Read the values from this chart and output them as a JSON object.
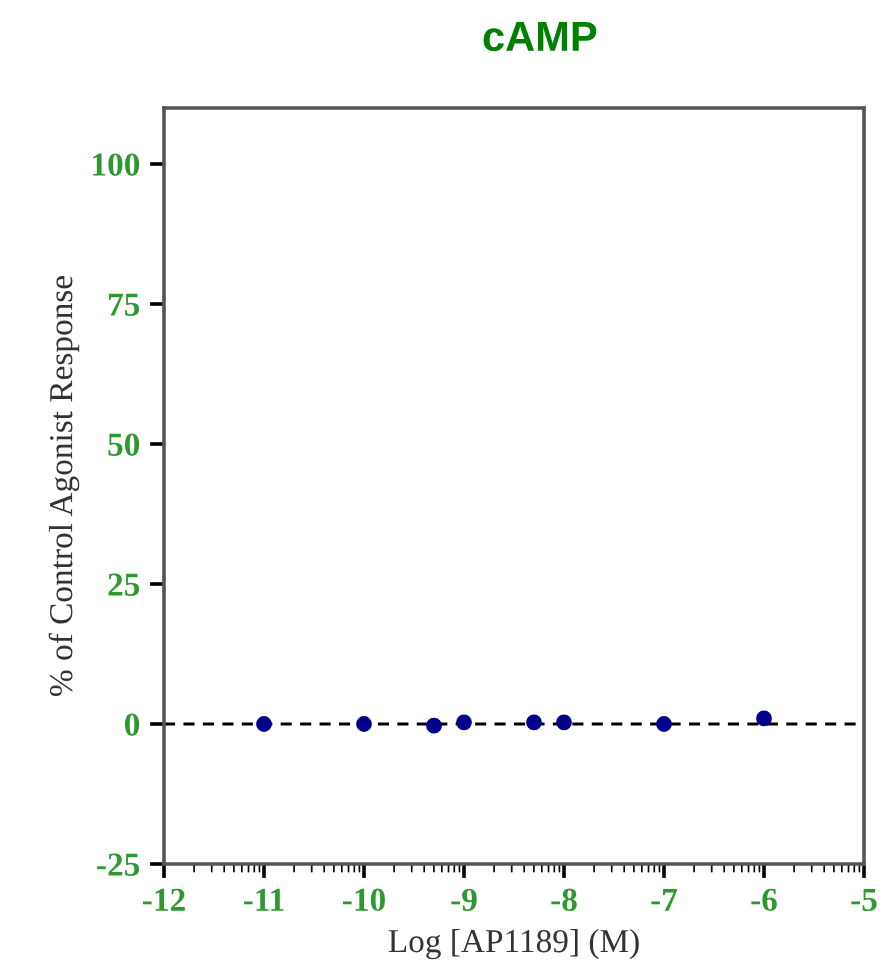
{
  "chart_data": {
    "type": "scatter",
    "title": "cAMP",
    "xlabel": "Log [AP1189] (M)",
    "ylabel": "% of Control Agonist Response",
    "x": [
      -11,
      -10,
      -9.3,
      -9,
      -8.3,
      -8,
      -7,
      -6
    ],
    "series": [
      {
        "color": "#00008b",
        "values": [
          0,
          0,
          -0.3,
          0.3,
          0.3,
          0.3,
          0,
          1
        ]
      }
    ],
    "marker": "circle",
    "xlim": [
      -12,
      -5
    ],
    "xticks": [
      -12,
      -11,
      -10,
      -9,
      -8,
      -7,
      -6,
      -5
    ],
    "ylim": [
      -25,
      110
    ],
    "yticks": [
      -25,
      0,
      25,
      50,
      75,
      100
    ],
    "ref_lines": [
      {
        "axis": "y",
        "value": 0,
        "color": "#000000",
        "line_style": "dashed"
      }
    ],
    "grid": false,
    "legend": false
  }
}
